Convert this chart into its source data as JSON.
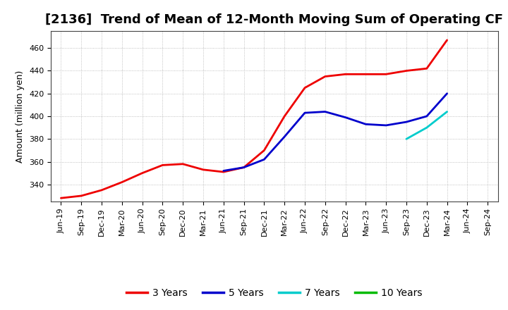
{
  "title": "[2136]  Trend of Mean of 12-Month Moving Sum of Operating CF",
  "ylabel": "Amount (million yen)",
  "ylim": [
    325,
    475
  ],
  "yticks": [
    340,
    360,
    380,
    400,
    420,
    440,
    460
  ],
  "background_color": "#ffffff",
  "grid_color": "#b0b0b0",
  "x_labels": [
    "Jun-19",
    "Sep-19",
    "Dec-19",
    "Mar-20",
    "Jun-20",
    "Sep-20",
    "Dec-20",
    "Mar-21",
    "Jun-21",
    "Sep-21",
    "Dec-21",
    "Mar-22",
    "Jun-22",
    "Sep-22",
    "Dec-22",
    "Mar-23",
    "Jun-23",
    "Sep-23",
    "Dec-23",
    "Mar-24",
    "Jun-24",
    "Sep-24"
  ],
  "series": [
    {
      "label": "3 Years",
      "color": "#ee0000",
      "linewidth": 2.0,
      "y": [
        328,
        330,
        335,
        342,
        350,
        357,
        358,
        353,
        351,
        355,
        370,
        400,
        425,
        435,
        437,
        437,
        437,
        440,
        442,
        467,
        null,
        null
      ]
    },
    {
      "label": "5 Years",
      "color": "#0000cc",
      "linewidth": 2.0,
      "y": [
        null,
        null,
        null,
        null,
        null,
        null,
        null,
        null,
        352,
        355,
        362,
        382,
        403,
        404,
        399,
        393,
        392,
        395,
        400,
        420,
        null,
        null
      ]
    },
    {
      "label": "7 Years",
      "color": "#00cccc",
      "linewidth": 2.0,
      "y": [
        null,
        null,
        null,
        null,
        null,
        null,
        null,
        null,
        null,
        null,
        null,
        null,
        null,
        null,
        null,
        null,
        null,
        380,
        390,
        404,
        null,
        null
      ]
    },
    {
      "label": "10 Years",
      "color": "#00bb00",
      "linewidth": 2.0,
      "y": [
        null,
        null,
        null,
        null,
        null,
        null,
        null,
        null,
        null,
        null,
        null,
        null,
        null,
        null,
        null,
        null,
        null,
        null,
        null,
        null,
        null,
        null
      ]
    }
  ],
  "legend_fontsize": 10,
  "title_fontsize": 13,
  "tick_fontsize": 8,
  "ylabel_fontsize": 9
}
